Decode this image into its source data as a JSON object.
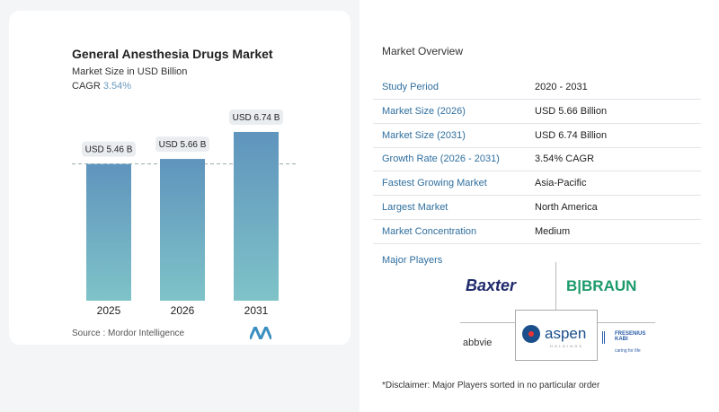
{
  "chart": {
    "title": "General Anesthesia Drugs Market",
    "subtitle": "Market Size in USD Billion",
    "cagr_label": "CAGR",
    "cagr_value": "3.54%",
    "source": "Source :  Mordor Intelligence"
  },
  "chart_data": {
    "type": "bar",
    "categories": [
      "2025",
      "2026",
      "2031"
    ],
    "values": [
      5.46,
      5.66,
      6.74
    ],
    "data_labels": [
      "USD 5.46 B",
      "USD 5.66 B",
      "USD 6.74 B"
    ],
    "title": "General Anesthesia Drugs Market",
    "ylabel": "Market Size in USD Billion",
    "bar_color": "#5f94bd",
    "reference_line": "dashed at 2025 value"
  },
  "overview": {
    "heading": "Market Overview",
    "rows": [
      {
        "label": "Study Period",
        "value": "2020 - 2031"
      },
      {
        "label": "Market Size (2026)",
        "value": "USD 5.66 Billion"
      },
      {
        "label": "Market Size (2031)",
        "value": "USD 6.74 Billion"
      },
      {
        "label": "Growth Rate (2026 - 2031)",
        "value": "3.54% CAGR"
      },
      {
        "label": "Fastest Growing Market",
        "value": "Asia-Pacific"
      },
      {
        "label": "Largest Market",
        "value": "North America"
      },
      {
        "label": "Market Concentration",
        "value": "Medium"
      }
    ]
  },
  "players": {
    "heading": "Major Players",
    "logos": [
      "Baxter",
      "B|BRAUN",
      "abbvie",
      "aspen",
      "FRESENIUS KABI"
    ],
    "aspen_sub": "HOLDINGS",
    "fresenius_tag": "caring for life"
  },
  "disclaimer": "*Disclaimer: Major Players sorted in no particular order"
}
